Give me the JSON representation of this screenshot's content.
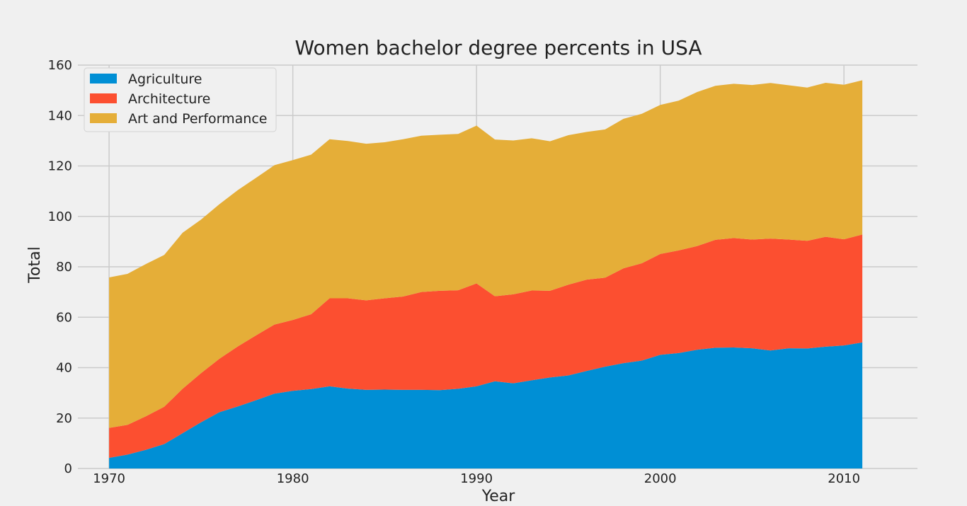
{
  "chart_data": {
    "type": "area",
    "stacked": true,
    "title": "Women bachelor degree percents in USA",
    "xlabel": "Year",
    "ylabel": "Total",
    "xlim": [
      1968.3,
      2014
    ],
    "ylim": [
      0,
      160
    ],
    "xticks": [
      1970,
      1980,
      1990,
      2000,
      2010
    ],
    "yticks": [
      0,
      20,
      40,
      60,
      80,
      100,
      120,
      140,
      160
    ],
    "grid": true,
    "legend_position": "top-left",
    "x": [
      1970,
      1971,
      1972,
      1973,
      1974,
      1975,
      1976,
      1977,
      1978,
      1979,
      1980,
      1981,
      1982,
      1983,
      1984,
      1985,
      1986,
      1987,
      1988,
      1989,
      1990,
      1991,
      1992,
      1993,
      1994,
      1995,
      1996,
      1997,
      1998,
      1999,
      2000,
      2001,
      2002,
      2003,
      2004,
      2005,
      2006,
      2007,
      2008,
      2009,
      2010,
      2011
    ],
    "series": [
      {
        "name": "Agriculture",
        "color": "#008fd5",
        "values": [
          4.2,
          5.5,
          7.4,
          9.7,
          14.0,
          18.3,
          22.3,
          24.6,
          27.1,
          29.7,
          30.8,
          31.5,
          32.6,
          31.7,
          31.2,
          31.3,
          31.2,
          31.2,
          31.1,
          31.6,
          32.6,
          34.6,
          33.8,
          35.0,
          36.1,
          36.9,
          38.7,
          40.4,
          41.8,
          42.8,
          45.1,
          45.8,
          47.1,
          47.9,
          48.0,
          47.7,
          46.8,
          47.7,
          47.6,
          48.3,
          48.8,
          50.0
        ]
      },
      {
        "name": "Architecture",
        "color": "#fc4f30",
        "values": [
          11.9,
          11.8,
          13.3,
          14.8,
          17.6,
          19.5,
          21.2,
          23.8,
          25.7,
          27.4,
          28.1,
          29.7,
          34.9,
          35.8,
          35.5,
          36.2,
          37.0,
          38.8,
          39.4,
          39.1,
          40.8,
          33.7,
          35.3,
          35.6,
          34.4,
          36.0,
          36.2,
          35.3,
          37.6,
          38.6,
          40.0,
          40.7,
          41.1,
          42.8,
          43.4,
          43.1,
          44.4,
          43.1,
          42.7,
          43.6,
          42.1,
          42.8
        ]
      },
      {
        "name": "Art and Performance",
        "color": "#e5ae38",
        "values": [
          59.7,
          59.9,
          60.4,
          60.2,
          61.9,
          60.9,
          61.3,
          62.0,
          62.5,
          63.2,
          63.4,
          63.3,
          63.1,
          62.4,
          62.1,
          61.9,
          62.4,
          62.0,
          61.9,
          62.0,
          62.6,
          62.2,
          61.0,
          60.4,
          59.3,
          59.3,
          58.6,
          58.8,
          59.3,
          59.3,
          59.1,
          59.4,
          61.1,
          61.1,
          61.2,
          61.3,
          61.7,
          61.2,
          60.8,
          61.1,
          61.3,
          61.2
        ]
      }
    ]
  }
}
